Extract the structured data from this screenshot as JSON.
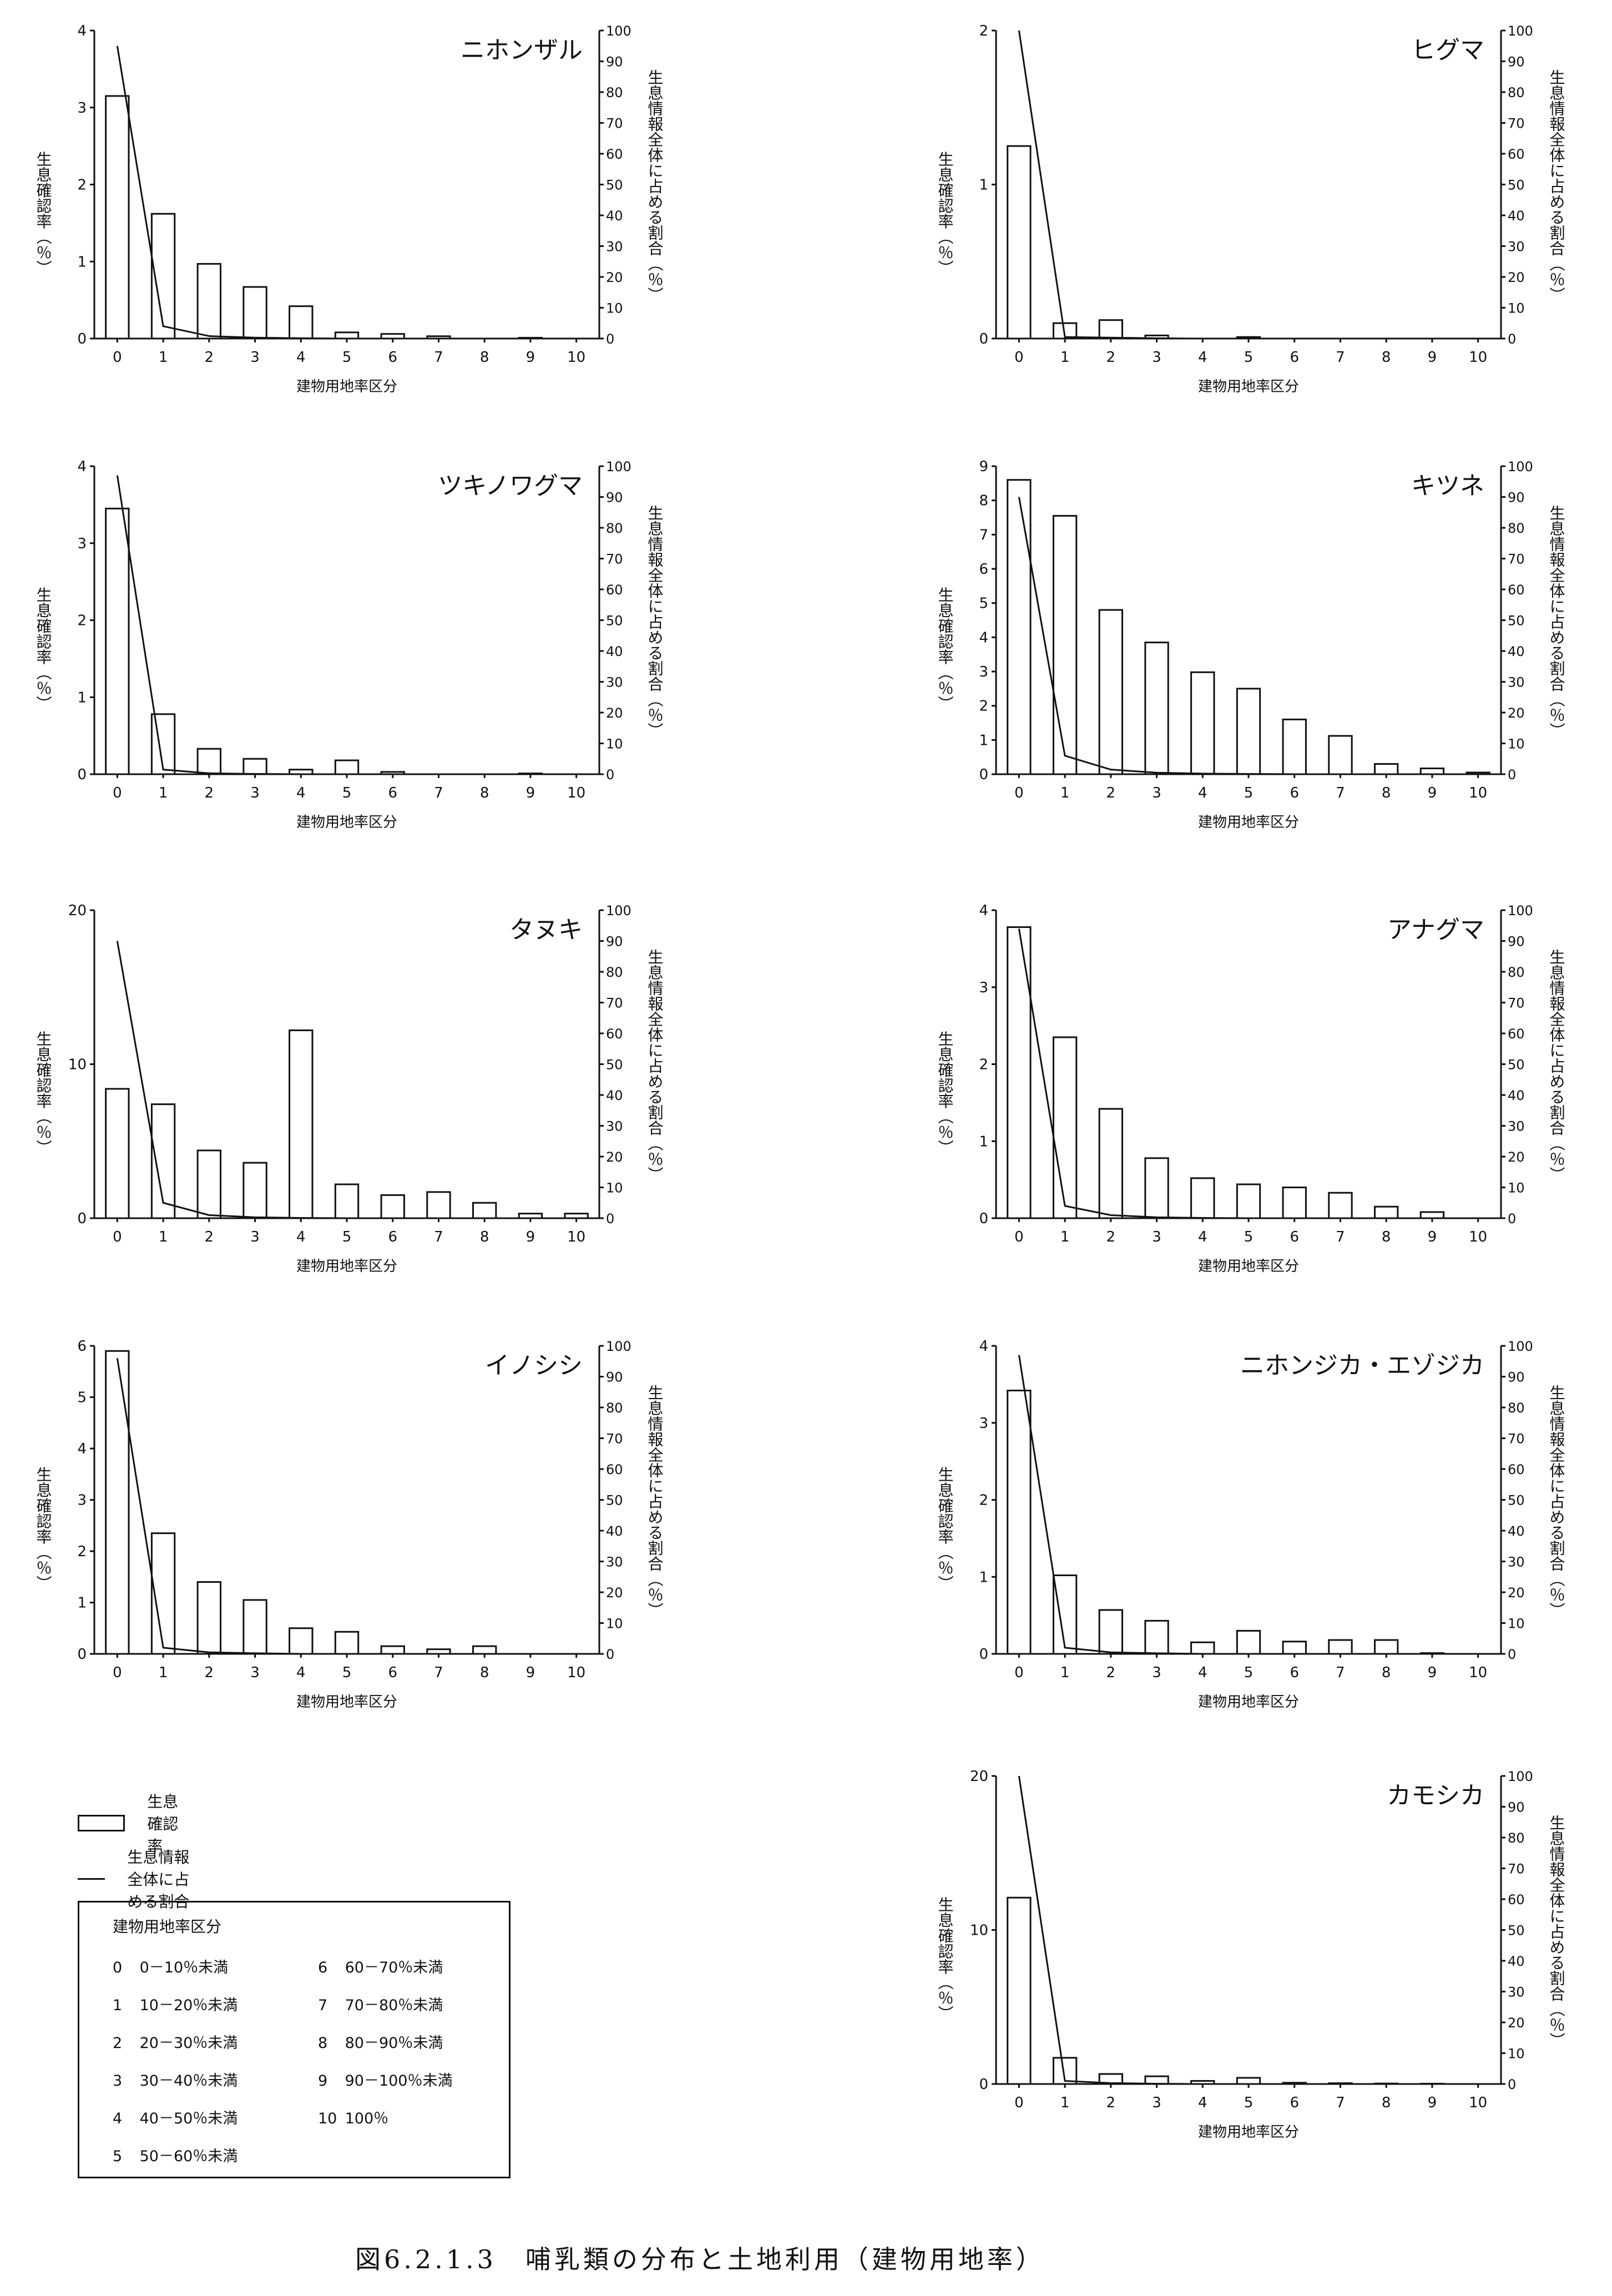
{
  "figure_caption": "図6.2.1.3　哺乳類の分布と土地利用（建物用地率）",
  "legend": {
    "bar_label": "生息確認率",
    "line_label": "生息情報全体に占める割合"
  },
  "category_legend": {
    "title": "建物用地率区分",
    "items": [
      {
        "code": "0",
        "range": "0－10％未満"
      },
      {
        "code": "1",
        "range": "10－20％未満"
      },
      {
        "code": "2",
        "range": "20－30％未満"
      },
      {
        "code": "3",
        "range": "30－40％未満"
      },
      {
        "code": "4",
        "range": "40－50％未満"
      },
      {
        "code": "5",
        "range": "50－60％未満"
      },
      {
        "code": "6",
        "range": "60－70％未満"
      },
      {
        "code": "7",
        "range": "70－80％未満"
      },
      {
        "code": "8",
        "range": "80－90％未満"
      },
      {
        "code": "9",
        "range": "90－100％未満"
      },
      {
        "code": "10",
        "range": "100％"
      }
    ]
  },
  "chart_data": [
    {
      "type": "bar",
      "title": "ニホンザル",
      "categories": [
        "0",
        "1",
        "2",
        "3",
        "4",
        "5",
        "6",
        "7",
        "8",
        "9",
        "10"
      ],
      "xlabel": "建物用地率区分",
      "ylabel": "生息確認率（％）",
      "y2label": "生息情報全体に占める割合（％）",
      "ylim": [
        0,
        4
      ],
      "y_ticks": [
        "0",
        "1",
        "2",
        "3",
        "4"
      ],
      "y2lim": [
        0,
        100
      ],
      "y2_ticks": [
        "0",
        "10",
        "20",
        "30",
        "40",
        "50",
        "60",
        "70",
        "80",
        "90",
        "100"
      ],
      "series": [
        {
          "name": "生息確認率",
          "kind": "bar",
          "axis": "left",
          "values": [
            3.15,
            1.62,
            0.97,
            0.67,
            0.42,
            0.08,
            0.06,
            0.03,
            0,
            0.01,
            0
          ]
        },
        {
          "name": "生息情報全体に占める割合",
          "kind": "line",
          "axis": "right",
          "values": [
            95,
            4,
            0.8,
            0.3,
            0.1,
            0,
            0,
            0,
            0,
            0,
            0
          ]
        }
      ]
    },
    {
      "type": "bar",
      "title": "ヒグマ",
      "categories": [
        "0",
        "1",
        "2",
        "3",
        "4",
        "5",
        "6",
        "7",
        "8",
        "9",
        "10"
      ],
      "xlabel": "建物用地率区分",
      "ylabel": "生息確認率（％）",
      "y2label": "生息情報全体に占める割合（％）",
      "ylim": [
        0,
        2
      ],
      "y_ticks": [
        "0",
        "1",
        "2"
      ],
      "y2lim": [
        0,
        100
      ],
      "y2_ticks": [
        "0",
        "10",
        "20",
        "30",
        "40",
        "50",
        "60",
        "70",
        "80",
        "90",
        "100"
      ],
      "series": [
        {
          "name": "生息確認率",
          "kind": "bar",
          "axis": "left",
          "values": [
            1.25,
            0.1,
            0.12,
            0.02,
            0,
            0.01,
            0,
            0,
            0,
            0,
            0
          ]
        },
        {
          "name": "生息情報全体に占める割合",
          "kind": "line",
          "axis": "right",
          "values": [
            100,
            0.5,
            0.3,
            0.1,
            0,
            0,
            0,
            0,
            0,
            0,
            0
          ]
        }
      ]
    },
    {
      "type": "bar",
      "title": "ツキノワグマ",
      "categories": [
        "0",
        "1",
        "2",
        "3",
        "4",
        "5",
        "6",
        "7",
        "8",
        "9",
        "10"
      ],
      "xlabel": "建物用地率区分",
      "ylabel": "生息確認率（％）",
      "y2label": "生息情報全体に占める割合（％）",
      "ylim": [
        0,
        4
      ],
      "y_ticks": [
        "0",
        "1",
        "2",
        "3",
        "4"
      ],
      "y2lim": [
        0,
        100
      ],
      "y2_ticks": [
        "0",
        "10",
        "20",
        "30",
        "40",
        "50",
        "60",
        "70",
        "80",
        "90",
        "100"
      ],
      "series": [
        {
          "name": "生息確認率",
          "kind": "bar",
          "axis": "left",
          "values": [
            3.45,
            0.78,
            0.33,
            0.2,
            0.06,
            0.18,
            0.03,
            0,
            0,
            0.01,
            0
          ]
        },
        {
          "name": "生息情報全体に占める割合",
          "kind": "line",
          "axis": "right",
          "values": [
            97,
            1.5,
            0.3,
            0.1,
            0,
            0,
            0,
            0,
            0,
            0,
            0
          ]
        }
      ]
    },
    {
      "type": "bar",
      "title": "キツネ",
      "categories": [
        "0",
        "1",
        "2",
        "3",
        "4",
        "5",
        "6",
        "7",
        "8",
        "9",
        "10"
      ],
      "xlabel": "建物用地率区分",
      "ylabel": "生息確認率（％）",
      "y2label": "生息情報全体に占める割合（％）",
      "ylim": [
        0,
        9
      ],
      "y_ticks": [
        "0",
        "1",
        "2",
        "3",
        "4",
        "5",
        "6",
        "7",
        "8",
        "9"
      ],
      "y2lim": [
        0,
        100
      ],
      "y2_ticks": [
        "0",
        "10",
        "20",
        "30",
        "40",
        "50",
        "60",
        "70",
        "80",
        "90",
        "100"
      ],
      "series": [
        {
          "name": "生息確認率",
          "kind": "bar",
          "axis": "left",
          "values": [
            8.6,
            7.55,
            4.8,
            3.85,
            2.98,
            2.5,
            1.6,
            1.12,
            0.3,
            0.17,
            0.05
          ]
        },
        {
          "name": "生息情報全体に占める割合",
          "kind": "line",
          "axis": "right",
          "values": [
            90,
            6,
            1.5,
            0.5,
            0.2,
            0.1,
            0,
            0,
            0,
            0,
            0
          ]
        }
      ]
    },
    {
      "type": "bar",
      "title": "タヌキ",
      "categories": [
        "0",
        "1",
        "2",
        "3",
        "4",
        "5",
        "6",
        "7",
        "8",
        "9",
        "10"
      ],
      "xlabel": "建物用地率区分",
      "ylabel": "生息確認率（％）",
      "y2label": "生息情報全体に占める割合（％）",
      "ylim": [
        0,
        20
      ],
      "y_ticks": [
        "0",
        "10",
        "20"
      ],
      "y2lim": [
        0,
        100
      ],
      "y2_ticks": [
        "0",
        "10",
        "20",
        "30",
        "40",
        "50",
        "60",
        "70",
        "80",
        "90",
        "100"
      ],
      "series": [
        {
          "name": "生息確認率",
          "kind": "bar",
          "axis": "left",
          "values": [
            8.4,
            7.4,
            4.4,
            3.6,
            12.2,
            2.2,
            1.5,
            1.7,
            1.0,
            0.3,
            0.3
          ]
        },
        {
          "name": "生息情報全体に占める割合",
          "kind": "line",
          "axis": "right",
          "values": [
            90,
            5,
            1,
            0.3,
            0.1,
            0,
            0,
            0,
            0,
            0,
            0
          ]
        }
      ]
    },
    {
      "type": "bar",
      "title": "アナグマ",
      "categories": [
        "0",
        "1",
        "2",
        "3",
        "4",
        "5",
        "6",
        "7",
        "8",
        "9",
        "10"
      ],
      "xlabel": "建物用地率区分",
      "ylabel": "生息確認率（％）",
      "y2label": "生息情報全体に占める割合（％）",
      "ylim": [
        0,
        4
      ],
      "y_ticks": [
        "0",
        "1",
        "2",
        "3",
        "4"
      ],
      "y2lim": [
        0,
        100
      ],
      "y2_ticks": [
        "0",
        "10",
        "20",
        "30",
        "40",
        "50",
        "60",
        "70",
        "80",
        "90",
        "100"
      ],
      "series": [
        {
          "name": "生息確認率",
          "kind": "bar",
          "axis": "left",
          "values": [
            3.78,
            2.35,
            1.42,
            0.78,
            0.52,
            0.44,
            0.4,
            0.33,
            0.15,
            0.08,
            0
          ]
        },
        {
          "name": "生息情報全体に占める割合",
          "kind": "line",
          "axis": "right",
          "values": [
            94,
            4,
            1,
            0.3,
            0.1,
            0,
            0,
            0,
            0,
            0,
            0
          ]
        }
      ]
    },
    {
      "type": "bar",
      "title": "イノシシ",
      "categories": [
        "0",
        "1",
        "2",
        "3",
        "4",
        "5",
        "6",
        "7",
        "8",
        "9",
        "10"
      ],
      "xlabel": "建物用地率区分",
      "ylabel": "生息確認率（％）",
      "y2label": "生息情報全体に占める割合（％）",
      "ylim": [
        0,
        6
      ],
      "y_ticks": [
        "0",
        "1",
        "2",
        "3",
        "4",
        "5",
        "6"
      ],
      "y2lim": [
        0,
        100
      ],
      "y2_ticks": [
        "0",
        "10",
        "20",
        "30",
        "40",
        "50",
        "60",
        "70",
        "80",
        "90",
        "100"
      ],
      "series": [
        {
          "name": "生息確認率",
          "kind": "bar",
          "axis": "left",
          "values": [
            5.9,
            2.35,
            1.4,
            1.05,
            0.5,
            0.43,
            0.15,
            0.09,
            0.15,
            0,
            0
          ]
        },
        {
          "name": "生息情報全体に占める割合",
          "kind": "line",
          "axis": "right",
          "values": [
            96,
            2,
            0.5,
            0.2,
            0,
            0,
            0,
            0,
            0,
            0,
            0
          ]
        }
      ]
    },
    {
      "type": "bar",
      "title": "ニホンジカ・エゾジカ",
      "categories": [
        "0",
        "1",
        "2",
        "3",
        "4",
        "5",
        "6",
        "7",
        "8",
        "9",
        "10"
      ],
      "xlabel": "建物用地率区分",
      "ylabel": "生息確認率（％）",
      "y2label": "生息情報全体に占める割合（％）",
      "ylim": [
        0,
        4
      ],
      "y_ticks": [
        "0",
        "1",
        "2",
        "3",
        "4"
      ],
      "y2lim": [
        0,
        100
      ],
      "y2_ticks": [
        "0",
        "10",
        "20",
        "30",
        "40",
        "50",
        "60",
        "70",
        "80",
        "90",
        "100"
      ],
      "series": [
        {
          "name": "生息確認率",
          "kind": "bar",
          "axis": "left",
          "values": [
            3.42,
            1.02,
            0.57,
            0.43,
            0.15,
            0.3,
            0.16,
            0.18,
            0.18,
            0.01,
            0
          ]
        },
        {
          "name": "生息情報全体に占める割合",
          "kind": "line",
          "axis": "right",
          "values": [
            97,
            2,
            0.5,
            0.2,
            0,
            0,
            0,
            0,
            0,
            0,
            0
          ]
        }
      ]
    },
    {
      "type": "bar",
      "title": "カモシカ",
      "categories": [
        "0",
        "1",
        "2",
        "3",
        "4",
        "5",
        "6",
        "7",
        "8",
        "9",
        "10"
      ],
      "xlabel": "建物用地率区分",
      "ylabel": "生息確認率（％）",
      "y2label": "生息情報全体に占める割合（％）",
      "ylim": [
        0,
        20
      ],
      "y_ticks": [
        "0",
        "10",
        "20"
      ],
      "y2lim": [
        0,
        100
      ],
      "y2_ticks": [
        "0",
        "10",
        "20",
        "30",
        "40",
        "50",
        "60",
        "70",
        "80",
        "90",
        "100"
      ],
      "series": [
        {
          "name": "生息確認率",
          "kind": "bar",
          "axis": "left",
          "values": [
            12.1,
            1.7,
            0.65,
            0.5,
            0.2,
            0.4,
            0.08,
            0.05,
            0.03,
            0.02,
            0
          ]
        },
        {
          "name": "生息情報全体に占める割合",
          "kind": "line",
          "axis": "right",
          "values": [
            100,
            1,
            0.3,
            0.1,
            0,
            0,
            0,
            0,
            0,
            0,
            0
          ]
        }
      ]
    }
  ]
}
